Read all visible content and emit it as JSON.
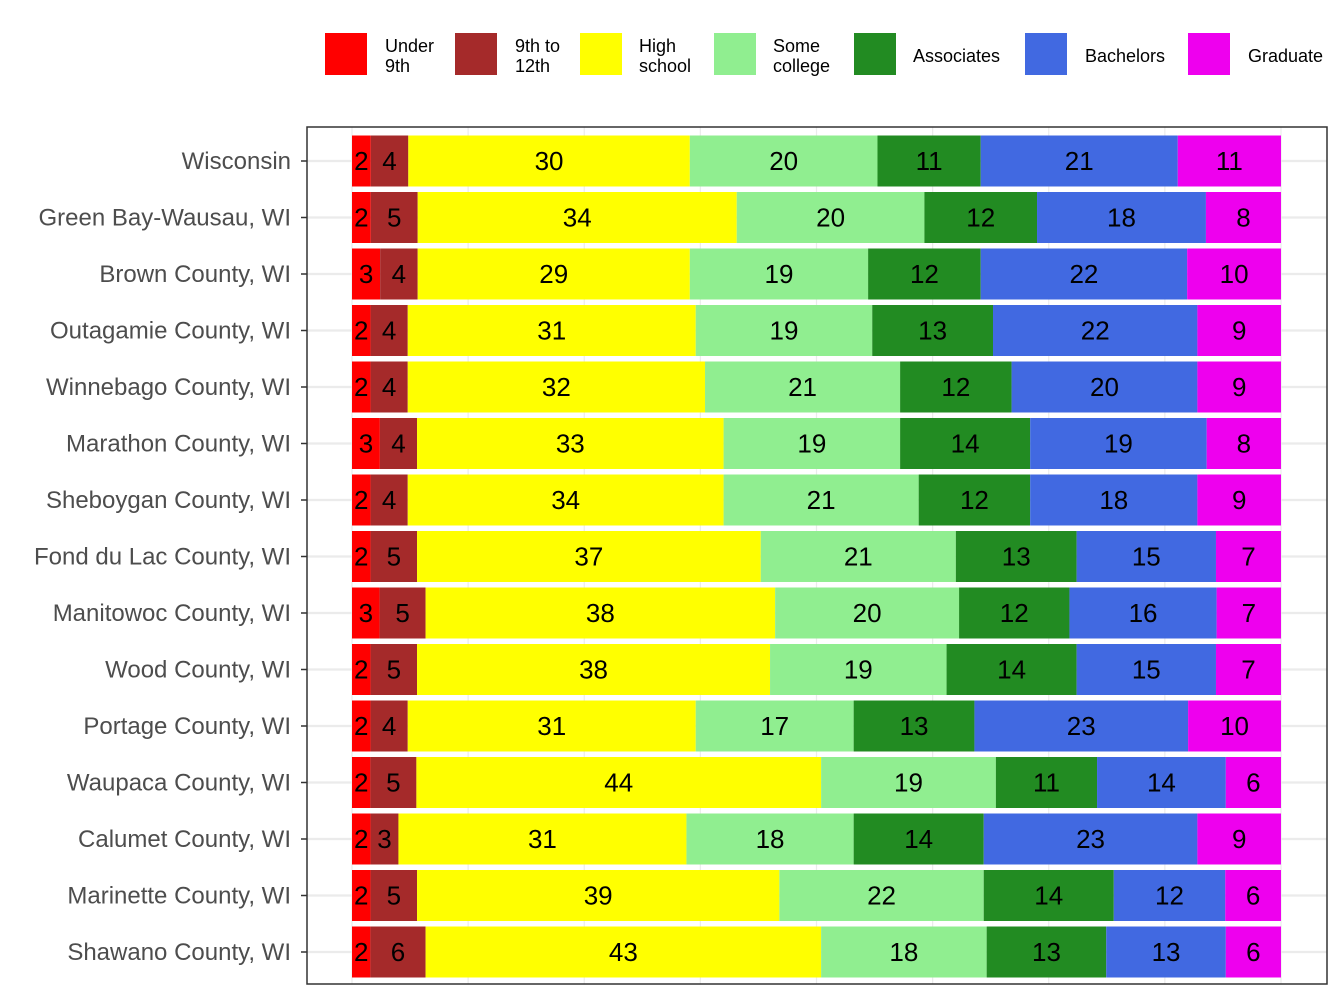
{
  "chart_data": {
    "type": "bar",
    "orientation": "horizontal",
    "stacked": true,
    "normalized": true,
    "grid": true,
    "legend_position": "top",
    "title": "",
    "xlabel": "",
    "ylabel": "",
    "categories": [
      "Wisconsin",
      "Green Bay-Wausau, WI",
      "Brown County, WI",
      "Outagamie County, WI",
      "Winnebago County, WI",
      "Marathon County, WI",
      "Sheboygan County, WI",
      "Fond du Lac County, WI",
      "Manitowoc County, WI",
      "Wood County, WI",
      "Portage County, WI",
      "Waupaca County, WI",
      "Calumet County, WI",
      "Marinette County, WI",
      "Shawano County, WI"
    ],
    "series": [
      {
        "name": "Under 9th",
        "legend_lines": [
          "Under",
          "9th"
        ],
        "color": "#ff0000",
        "values": [
          2,
          2,
          3,
          2,
          2,
          3,
          2,
          2,
          3,
          2,
          2,
          2,
          2,
          2,
          2
        ]
      },
      {
        "name": "9th to 12th",
        "legend_lines": [
          "9th to",
          "12th"
        ],
        "color": "#a52a2a",
        "values": [
          4,
          5,
          4,
          4,
          4,
          4,
          4,
          5,
          5,
          5,
          4,
          5,
          3,
          5,
          6
        ]
      },
      {
        "name": "High school",
        "legend_lines": [
          "High",
          "school"
        ],
        "color": "#ffff00",
        "values": [
          30,
          34,
          29,
          31,
          32,
          33,
          34,
          37,
          38,
          38,
          31,
          44,
          31,
          39,
          43
        ]
      },
      {
        "name": "Some college",
        "legend_lines": [
          "Some",
          "college"
        ],
        "color": "#90ee90",
        "values": [
          20,
          20,
          19,
          19,
          21,
          19,
          21,
          21,
          20,
          19,
          17,
          19,
          18,
          22,
          18
        ]
      },
      {
        "name": "Associates",
        "legend_lines": [
          "Associates"
        ],
        "color": "#228b22",
        "values": [
          11,
          12,
          12,
          13,
          12,
          14,
          12,
          13,
          12,
          14,
          13,
          11,
          14,
          14,
          13
        ]
      },
      {
        "name": "Bachelors",
        "legend_lines": [
          "Bachelors"
        ],
        "color": "#4169e1",
        "values": [
          21,
          18,
          22,
          22,
          20,
          19,
          18,
          15,
          16,
          15,
          23,
          14,
          23,
          12,
          13
        ]
      },
      {
        "name": "Graduate",
        "legend_lines": [
          "Graduate"
        ],
        "color": "#ee00ee",
        "values": [
          11,
          8,
          10,
          9,
          9,
          8,
          9,
          7,
          7,
          7,
          10,
          6,
          9,
          6,
          6
        ]
      }
    ]
  }
}
